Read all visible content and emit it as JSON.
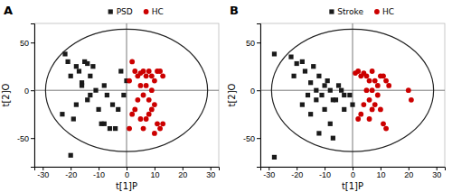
{
  "chart_data": [
    {
      "type": "scatter",
      "title": "A",
      "xlabel": "t[1]P",
      "ylabel": "t[2]O",
      "xlim": [
        -33,
        33
      ],
      "ylim": [
        -80,
        70
      ],
      "xticks": [
        -30,
        -20,
        -10,
        0,
        10,
        20,
        30
      ],
      "yticks": [
        -50,
        0,
        50
      ],
      "legend": "top",
      "ellipse": {
        "cx": 0,
        "cy": 0,
        "rx": 29,
        "ry": 64,
        "color": "#222222"
      },
      "crosshair": {
        "x": 0,
        "y": 0,
        "color": "#555555"
      },
      "series": [
        {
          "name": "PSD",
          "color": "#1a1a1a",
          "marker": "square",
          "x": [
            -22,
            -18,
            -21,
            -15,
            -20,
            -17,
            -14,
            -12,
            -16,
            -23,
            -19,
            -11,
            -13,
            -8,
            -18,
            -14,
            -10,
            -5,
            -7,
            -20,
            -16,
            -13,
            -9,
            -6,
            -4,
            -1,
            0,
            -2,
            -3,
            -8
          ],
          "values": [
            38,
            25,
            30,
            30,
            15,
            20,
            28,
            25,
            8,
            -25,
            -30,
            0,
            15,
            5,
            -15,
            -10,
            -20,
            -15,
            -5,
            -68,
            5,
            -5,
            -35,
            -40,
            -40,
            -5,
            10,
            20,
            -20,
            -35
          ]
        },
        {
          "name": "HC",
          "color": "#cc0000",
          "marker": "circle",
          "x": [
            2,
            3,
            4,
            5,
            6,
            7,
            8,
            9,
            10,
            11,
            12,
            13,
            5,
            7,
            9,
            6,
            8,
            4,
            10,
            3,
            2,
            11,
            12,
            6,
            7,
            8,
            9,
            5,
            13,
            1,
            10,
            1
          ],
          "values": [
            30,
            20,
            15,
            18,
            20,
            15,
            20,
            15,
            10,
            20,
            20,
            15,
            5,
            5,
            0,
            -5,
            -10,
            -10,
            -15,
            -20,
            -25,
            -35,
            -40,
            -40,
            -30,
            -25,
            -20,
            -30,
            -35,
            -40,
            -45,
            10
          ]
        }
      ]
    },
    {
      "type": "scatter",
      "title": "B",
      "xlabel": "t[1]P",
      "ylabel": "t[2]O",
      "xlim": [
        -33,
        33
      ],
      "ylim": [
        -80,
        70
      ],
      "xticks": [
        -30,
        -20,
        -10,
        0,
        10,
        20,
        30
      ],
      "yticks": [
        -50,
        0,
        50
      ],
      "legend": "top",
      "ellipse": {
        "cx": 0,
        "cy": 0,
        "rx": 29,
        "ry": 64,
        "color": "#222222"
      },
      "crosshair": {
        "x": 0,
        "y": 0,
        "color": "#555555"
      },
      "series": [
        {
          "name": "Stroke",
          "color": "#1a1a1a",
          "marker": "square",
          "x": [
            -28,
            -22,
            -20,
            -18,
            -21,
            -17,
            -14,
            -15,
            -12,
            -10,
            -13,
            -9,
            -11,
            -8,
            -5,
            -7,
            -16,
            -18,
            -15,
            -13,
            -10,
            -8,
            -6,
            -3,
            -1,
            -4,
            0,
            -12,
            -7,
            -3,
            -28
          ],
          "values": [
            38,
            35,
            28,
            30,
            15,
            20,
            25,
            8,
            15,
            5,
            0,
            10,
            -5,
            0,
            5,
            -10,
            -5,
            -15,
            -25,
            -10,
            -20,
            -35,
            -10,
            -5,
            -5,
            0,
            -15,
            -45,
            -50,
            -20,
            -70
          ]
        },
        {
          "name": "HC",
          "color": "#cc0000",
          "marker": "circle",
          "x": [
            2,
            3,
            4,
            5,
            6,
            7,
            8,
            9,
            10,
            11,
            12,
            13,
            5,
            7,
            9,
            6,
            8,
            4,
            10,
            3,
            2,
            11,
            12,
            6,
            7,
            20,
            21,
            1
          ],
          "values": [
            20,
            15,
            18,
            15,
            10,
            20,
            10,
            5,
            15,
            15,
            10,
            5,
            0,
            0,
            -5,
            -10,
            -15,
            -15,
            -20,
            -25,
            -30,
            -35,
            -40,
            -30,
            -20,
            0,
            -10,
            18
          ]
        }
      ]
    }
  ]
}
